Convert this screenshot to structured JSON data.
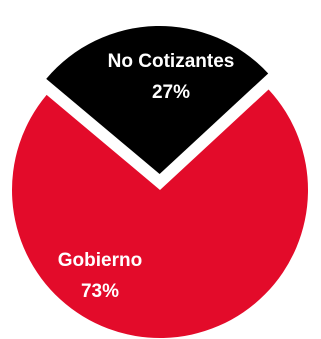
{
  "chart_data": {
    "type": "pie",
    "slices": [
      {
        "name": "No Cotizantes",
        "value": 27,
        "label": "27%",
        "color": "#000000"
      },
      {
        "name": "Gobierno",
        "value": 73,
        "label": "73%",
        "color": "#e30b2a"
      }
    ],
    "exploded_slice": "No Cotizantes",
    "legend": "none"
  }
}
